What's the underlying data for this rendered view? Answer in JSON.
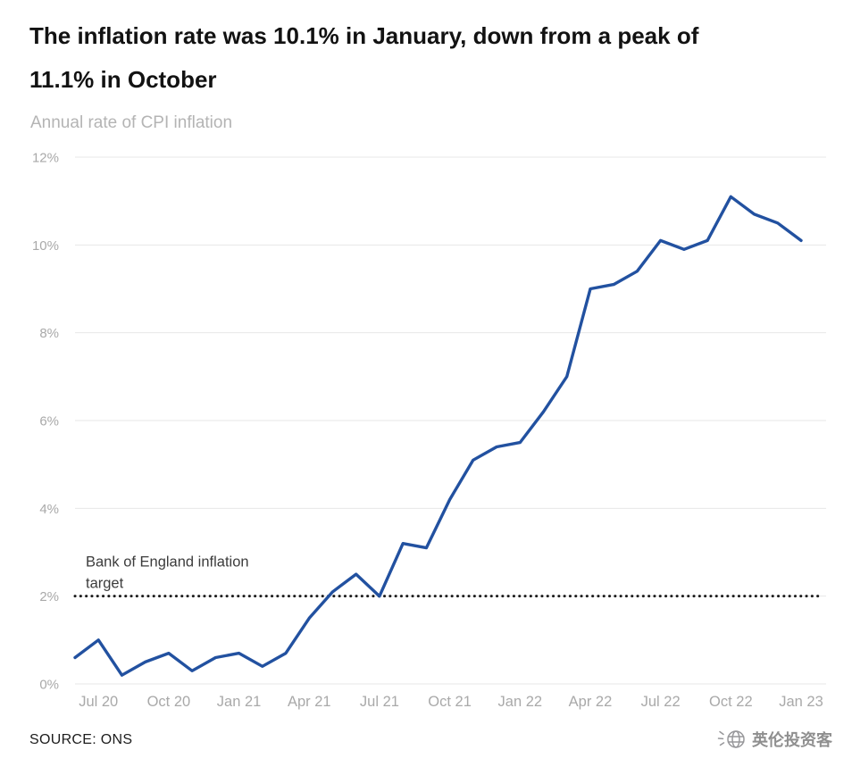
{
  "header": {
    "title_lines": [
      "The inflation rate was 10.1% in January, down from a peak of",
      "11.1% in October"
    ],
    "subtitle": "Annual rate of CPI inflation"
  },
  "chart_data": {
    "type": "line",
    "title": "The inflation rate was 10.1% in January, down from a peak of 11.1% in October",
    "subtitle": "Annual rate of CPI inflation",
    "x": [
      "Jun 20",
      "Jul 20",
      "Aug 20",
      "Sep 20",
      "Oct 20",
      "Nov 20",
      "Dec 20",
      "Jan 21",
      "Feb 21",
      "Mar 21",
      "Apr 21",
      "May 21",
      "Jun 21",
      "Jul 21",
      "Aug 21",
      "Sep 21",
      "Oct 21",
      "Nov 21",
      "Dec 21",
      "Jan 22",
      "Feb 22",
      "Mar 22",
      "Apr 22",
      "May 22",
      "Jun 22",
      "Jul 22",
      "Aug 22",
      "Sep 22",
      "Oct 22",
      "Nov 22",
      "Dec 22",
      "Jan 23"
    ],
    "values": [
      0.6,
      1.0,
      0.2,
      0.5,
      0.7,
      0.3,
      0.6,
      0.7,
      0.4,
      0.7,
      1.5,
      2.1,
      2.5,
      2.0,
      3.2,
      3.1,
      4.2,
      5.1,
      5.4,
      5.5,
      6.2,
      7.0,
      9.0,
      9.1,
      9.4,
      10.1,
      9.9,
      10.1,
      11.1,
      10.7,
      10.5,
      10.1
    ],
    "xlabel": "",
    "ylabel": "",
    "ylim": [
      0,
      12
    ],
    "ytick_step": 2,
    "ytick_labels": [
      "0%",
      "2%",
      "4%",
      "6%",
      "8%",
      "10%",
      "12%"
    ],
    "xticks": [
      {
        "index": 1,
        "label": "Jul 20"
      },
      {
        "index": 4,
        "label": "Oct 20"
      },
      {
        "index": 7,
        "label": "Jan 21"
      },
      {
        "index": 10,
        "label": "Apr 21"
      },
      {
        "index": 13,
        "label": "Jul 21"
      },
      {
        "index": 16,
        "label": "Oct 21"
      },
      {
        "index": 19,
        "label": "Jan 22"
      },
      {
        "index": 22,
        "label": "Apr 22"
      },
      {
        "index": 25,
        "label": "Jul 22"
      },
      {
        "index": 28,
        "label": "Oct 22"
      },
      {
        "index": 31,
        "label": "Jan 23"
      }
    ],
    "grid": true,
    "legend": "none",
    "line_color": "#2251a0",
    "grid_color": "#e7e7e7",
    "axis_label_color": "#a9a9a9",
    "reference_line": {
      "value": 2,
      "label": "Bank of England inflation target",
      "label_lines": [
        "Bank of England inflation",
        "target"
      ],
      "color": "#1b1b1b",
      "style": "dotted"
    }
  },
  "footer": {
    "source": "SOURCE: ONS",
    "watermark": "英伦投资客"
  }
}
